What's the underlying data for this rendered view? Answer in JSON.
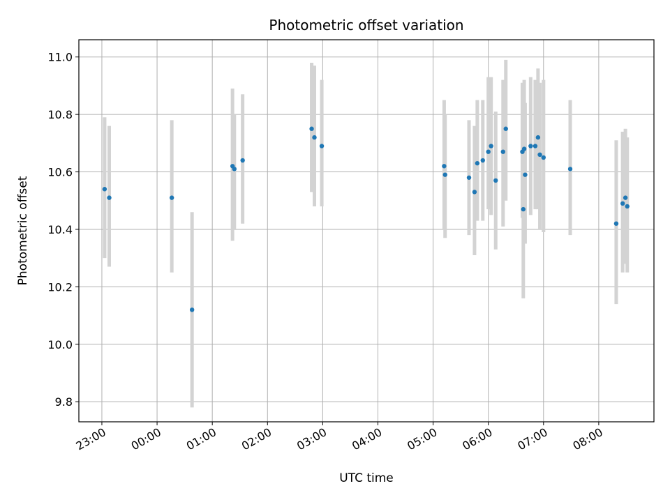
{
  "chart_data": {
    "type": "scatter",
    "title": "Photometric offset variation",
    "xlabel": "UTC time",
    "ylabel": "Photometric offset",
    "xlim": [
      "22:35",
      "09:00"
    ],
    "ylim": [
      9.73,
      11.06
    ],
    "grid": true,
    "x_ticks": [
      "23:00",
      "00:00",
      "01:00",
      "02:00",
      "03:00",
      "04:00",
      "05:00",
      "06:00",
      "07:00",
      "08:00"
    ],
    "y_ticks": [
      "9.8",
      "10.0",
      "10.2",
      "10.4",
      "10.6",
      "10.8",
      "11.0"
    ],
    "colors": {
      "point": "#1f77b4",
      "errorbar": "#d3d3d3",
      "grid": "#b0b0b0"
    },
    "points": [
      {
        "x": "23:03",
        "y": 10.54,
        "lo": 10.3,
        "hi": 10.79
      },
      {
        "x": "23:08",
        "y": 10.51,
        "lo": 10.27,
        "hi": 10.76
      },
      {
        "x": "00:16",
        "y": 10.51,
        "lo": 10.25,
        "hi": 10.78
      },
      {
        "x": "00:38",
        "y": 10.12,
        "lo": 9.78,
        "hi": 10.46
      },
      {
        "x": "01:22",
        "y": 10.62,
        "lo": 10.36,
        "hi": 10.89
      },
      {
        "x": "01:24",
        "y": 10.61,
        "lo": 10.4,
        "hi": 10.8
      },
      {
        "x": "01:33",
        "y": 10.64,
        "lo": 10.42,
        "hi": 10.87
      },
      {
        "x": "02:48",
        "y": 10.75,
        "lo": 10.53,
        "hi": 10.98
      },
      {
        "x": "02:51",
        "y": 10.72,
        "lo": 10.48,
        "hi": 10.97
      },
      {
        "x": "02:59",
        "y": 10.69,
        "lo": 10.48,
        "hi": 10.92
      },
      {
        "x": "05:12",
        "y": 10.62,
        "lo": 10.4,
        "hi": 10.85
      },
      {
        "x": "05:13",
        "y": 10.59,
        "lo": 10.37,
        "hi": 10.8
      },
      {
        "x": "05:39",
        "y": 10.58,
        "lo": 10.38,
        "hi": 10.78
      },
      {
        "x": "05:45",
        "y": 10.53,
        "lo": 10.31,
        "hi": 10.76
      },
      {
        "x": "05:48",
        "y": 10.63,
        "lo": 10.43,
        "hi": 10.85
      },
      {
        "x": "05:54",
        "y": 10.64,
        "lo": 10.43,
        "hi": 10.85
      },
      {
        "x": "06:00",
        "y": 10.67,
        "lo": 10.47,
        "hi": 10.93
      },
      {
        "x": "06:03",
        "y": 10.69,
        "lo": 10.45,
        "hi": 10.93
      },
      {
        "x": "06:08",
        "y": 10.57,
        "lo": 10.33,
        "hi": 10.81
      },
      {
        "x": "06:16",
        "y": 10.67,
        "lo": 10.41,
        "hi": 10.92
      },
      {
        "x": "06:19",
        "y": 10.75,
        "lo": 10.5,
        "hi": 10.99
      },
      {
        "x": "06:37",
        "y": 10.67,
        "lo": 10.44,
        "hi": 10.91
      },
      {
        "x": "06:38",
        "y": 10.47,
        "lo": 10.16,
        "hi": 10.9
      },
      {
        "x": "06:39",
        "y": 10.68,
        "lo": 10.44,
        "hi": 10.92
      },
      {
        "x": "06:40",
        "y": 10.59,
        "lo": 10.35,
        "hi": 10.84
      },
      {
        "x": "06:46",
        "y": 10.69,
        "lo": 10.45,
        "hi": 10.93
      },
      {
        "x": "06:51",
        "y": 10.69,
        "lo": 10.47,
        "hi": 10.92
      },
      {
        "x": "06:54",
        "y": 10.72,
        "lo": 10.47,
        "hi": 10.96
      },
      {
        "x": "06:56",
        "y": 10.66,
        "lo": 10.4,
        "hi": 10.91
      },
      {
        "x": "07:00",
        "y": 10.65,
        "lo": 10.39,
        "hi": 10.92
      },
      {
        "x": "07:29",
        "y": 10.61,
        "lo": 10.38,
        "hi": 10.85
      },
      {
        "x": "08:19",
        "y": 10.42,
        "lo": 10.14,
        "hi": 10.71
      },
      {
        "x": "08:26",
        "y": 10.49,
        "lo": 10.25,
        "hi": 10.74
      },
      {
        "x": "08:29",
        "y": 10.51,
        "lo": 10.28,
        "hi": 10.75
      },
      {
        "x": "08:31",
        "y": 10.48,
        "lo": 10.25,
        "hi": 10.72
      }
    ]
  }
}
